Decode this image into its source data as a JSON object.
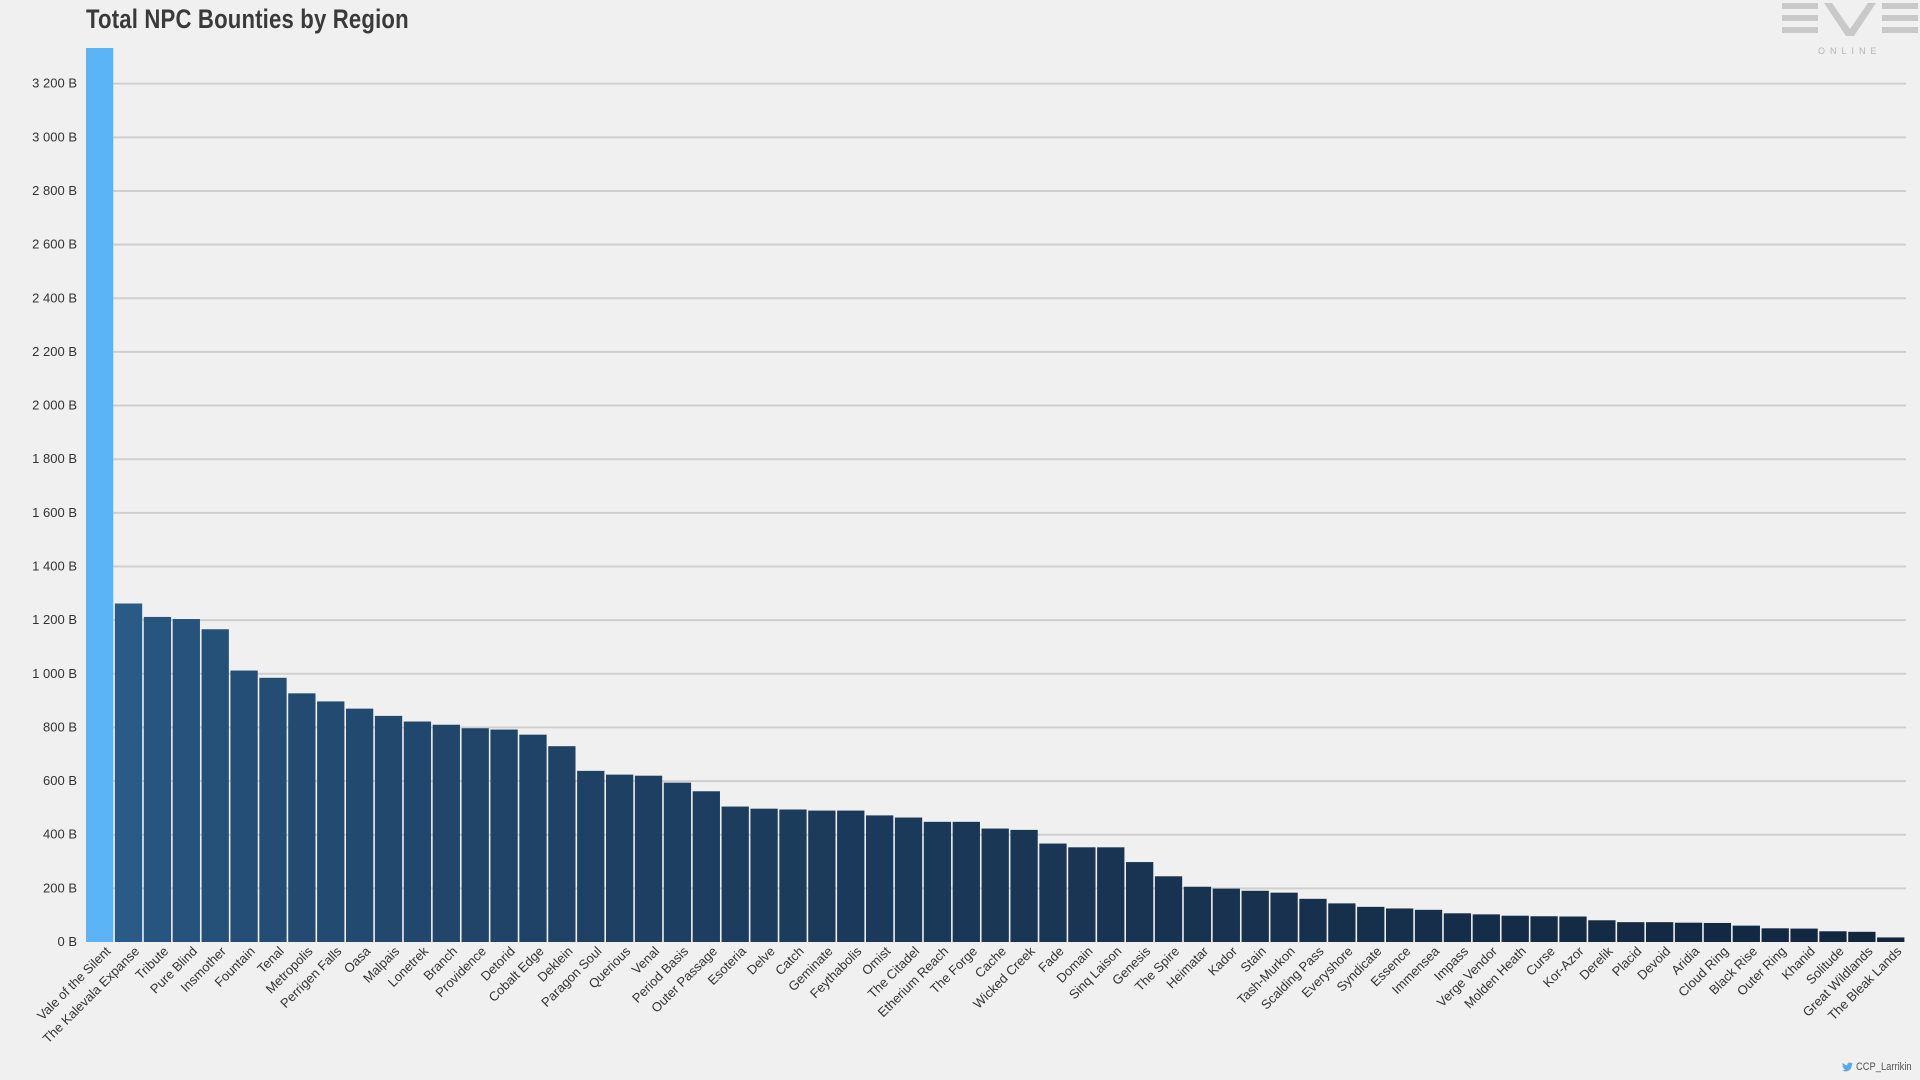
{
  "logo": {
    "sub": "ONLINE",
    "mark": "EVE"
  },
  "credit": {
    "handle": "CCP_Larrikin",
    "icon": "twitter-bird-icon"
  },
  "colors": {
    "highlight": "#5ab4f5",
    "bar_start": "#2a5a86",
    "bar_end": "#12263f",
    "grid": "#cfcfcf",
    "background": "#f0f0f0"
  },
  "chart_data": {
    "type": "bar",
    "title": "Total NPC Bounties by Region",
    "xlabel": "",
    "ylabel": "",
    "ylim": [
      0,
      3333
    ],
    "yticks": [
      0,
      200,
      400,
      600,
      800,
      1000,
      1200,
      1400,
      1600,
      1800,
      2000,
      2200,
      2400,
      2600,
      2800,
      3000,
      3200
    ],
    "ytick_labels": [
      "0 B",
      "200 B",
      "400 B",
      "600 B",
      "800 B",
      "1 000 B",
      "1 200 B",
      "1 400 B",
      "1 600 B",
      "1 800 B",
      "2 000 B",
      "2 200 B",
      "2 400 B",
      "2 600 B",
      "2 800 B",
      "3 000 B",
      "3 200 B"
    ],
    "grid": true,
    "legend": "none",
    "categories": [
      "Vale of the Silent",
      "The Kalevala Expanse",
      "Tribute",
      "Pure Blind",
      "Insmother",
      "Fountain",
      "Tenal",
      "Metropolis",
      "Perrigen Falls",
      "Oasa",
      "Malpais",
      "Lonetrek",
      "Branch",
      "Providence",
      "Detorid",
      "Cobalt Edge",
      "Deklein",
      "Paragon Soul",
      "Querious",
      "Venal",
      "Period Basis",
      "Outer Passage",
      "Esoteria",
      "Delve",
      "Catch",
      "Geminate",
      "Feythabolis",
      "Omist",
      "The Citadel",
      "Etherium Reach",
      "The Forge",
      "Cache",
      "Wicked Creek",
      "Fade",
      "Domain",
      "Sinq Laison",
      "Genesis",
      "The Spire",
      "Heimatar",
      "Kador",
      "Stain",
      "Tash-Murkon",
      "Scalding Pass",
      "Everyshore",
      "Syndicate",
      "Essence",
      "Immensea",
      "Impass",
      "Verge Vendor",
      "Molden Heath",
      "Curse",
      "Kor-Azor",
      "Derelik",
      "Placid",
      "Devoid",
      "Aridia",
      "Cloud Ring",
      "Black Rise",
      "Outer Ring",
      "Khanid",
      "Solitude",
      "Great Wildlands",
      "The Bleak Lands"
    ],
    "values": [
      3333,
      1262,
      1212,
      1204,
      1166,
      1012,
      985,
      927,
      897,
      870,
      843,
      822,
      810,
      797,
      792,
      773,
      730,
      638,
      624,
      620,
      594,
      562,
      505,
      497,
      494,
      490,
      490,
      472,
      464,
      448,
      448,
      423,
      418,
      367,
      353,
      353,
      298,
      245,
      206,
      199,
      191,
      184,
      161,
      144,
      131,
      125,
      120,
      107,
      103,
      98,
      96,
      95,
      81,
      74,
      74,
      72,
      71,
      61,
      51,
      50,
      40,
      38,
      17
    ]
  }
}
